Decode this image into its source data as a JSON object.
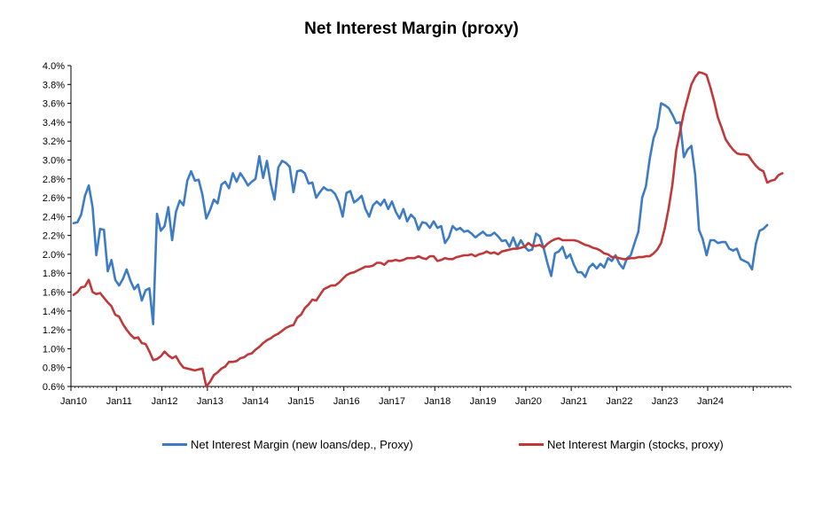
{
  "chart_data": {
    "type": "line",
    "title": "Net Interest Margin (proxy)",
    "xlabel": "",
    "ylabel": "",
    "ylim": [
      0.6,
      4.0
    ],
    "yticks": [
      "0.6%",
      "0.8%",
      "1.0%",
      "1.2%",
      "1.4%",
      "1.6%",
      "1.8%",
      "2.0%",
      "2.2%",
      "2.4%",
      "2.6%",
      "2.8%",
      "3.0%",
      "3.2%",
      "3.4%",
      "3.6%",
      "3.8%",
      "4.0%"
    ],
    "xticks": [
      "Jan10",
      "Jan11",
      "Jan12",
      "Jan13",
      "Jan14",
      "Jan15",
      "Jan16",
      "Jan17",
      "Jan18",
      "Jan19",
      "Jan20",
      "Jan21",
      "Jan22",
      "Jan23",
      "Jan24"
    ],
    "x_start": "2010-01",
    "grid": false,
    "legend_position": "bottom",
    "series": [
      {
        "name": "Net Interest Margin (new loans/dep., Proxy)",
        "color": "#3d7cc4",
        "values": [
          2.33,
          2.34,
          2.42,
          2.62,
          2.73,
          2.5,
          1.99,
          2.27,
          2.26,
          1.82,
          1.94,
          1.73,
          1.67,
          1.74,
          1.84,
          1.72,
          1.63,
          1.68,
          1.51,
          1.62,
          1.64,
          1.26,
          2.43,
          2.25,
          2.3,
          2.5,
          2.15,
          2.45,
          2.57,
          2.52,
          2.78,
          2.88,
          2.78,
          2.79,
          2.63,
          2.38,
          2.47,
          2.58,
          2.54,
          2.74,
          2.77,
          2.7,
          2.86,
          2.77,
          2.86,
          2.8,
          2.73,
          2.77,
          2.8,
          3.04,
          2.81,
          2.99,
          2.75,
          2.58,
          2.92,
          2.99,
          2.97,
          2.93,
          2.66,
          2.88,
          2.89,
          2.86,
          2.75,
          2.76,
          2.6,
          2.66,
          2.71,
          2.68,
          2.68,
          2.64,
          2.55,
          2.4,
          2.65,
          2.67,
          2.55,
          2.58,
          2.62,
          2.48,
          2.4,
          2.52,
          2.56,
          2.52,
          2.58,
          2.48,
          2.56,
          2.45,
          2.38,
          2.48,
          2.35,
          2.42,
          2.38,
          2.26,
          2.34,
          2.33,
          2.28,
          2.35,
          2.28,
          2.3,
          2.12,
          2.18,
          2.3,
          2.26,
          2.28,
          2.24,
          2.25,
          2.22,
          2.18,
          2.21,
          2.24,
          2.2,
          2.2,
          2.23,
          2.19,
          2.14,
          2.15,
          2.08,
          2.18,
          2.07,
          2.15,
          2.08,
          2.04,
          2.05,
          2.22,
          2.19,
          2.07,
          1.91,
          1.77,
          2.01,
          2.03,
          2.08,
          1.96,
          2.0,
          1.89,
          1.81,
          1.81,
          1.76,
          1.86,
          1.9,
          1.85,
          1.9,
          1.86,
          1.96,
          1.93,
          1.99,
          1.9,
          1.85,
          1.96,
          1.99,
          2.12,
          2.24,
          2.6,
          2.72,
          3.01,
          3.23,
          3.34,
          3.6,
          3.58,
          3.55,
          3.48,
          3.39,
          3.4,
          3.03,
          3.11,
          3.15,
          2.84,
          2.26,
          2.16,
          1.99,
          2.15,
          2.15,
          2.12,
          2.13,
          2.13,
          2.06,
          2.04,
          2.06,
          1.95,
          1.93,
          1.91,
          1.84,
          2.11,
          2.25,
          2.27,
          2.31
        ]
      },
      {
        "name": "Net Interest Margin (stocks, proxy)",
        "color": "#c0393a",
        "values": [
          1.57,
          1.6,
          1.65,
          1.66,
          1.73,
          1.6,
          1.58,
          1.59,
          1.54,
          1.49,
          1.45,
          1.36,
          1.34,
          1.26,
          1.2,
          1.15,
          1.11,
          1.12,
          1.06,
          1.05,
          0.97,
          0.88,
          0.89,
          0.92,
          0.97,
          0.93,
          0.9,
          0.92,
          0.85,
          0.8,
          0.79,
          0.78,
          0.77,
          0.78,
          0.79,
          0.6,
          0.65,
          0.72,
          0.75,
          0.79,
          0.81,
          0.86,
          0.86,
          0.87,
          0.9,
          0.91,
          0.94,
          0.95,
          0.99,
          1.02,
          1.06,
          1.09,
          1.11,
          1.14,
          1.16,
          1.19,
          1.22,
          1.24,
          1.25,
          1.33,
          1.36,
          1.43,
          1.47,
          1.52,
          1.51,
          1.57,
          1.63,
          1.65,
          1.67,
          1.67,
          1.7,
          1.74,
          1.78,
          1.8,
          1.81,
          1.83,
          1.85,
          1.87,
          1.87,
          1.88,
          1.91,
          1.91,
          1.89,
          1.93,
          1.93,
          1.94,
          1.93,
          1.94,
          1.96,
          1.96,
          1.96,
          1.98,
          1.96,
          1.95,
          1.98,
          1.98,
          1.93,
          1.94,
          1.96,
          1.95,
          1.95,
          1.97,
          1.98,
          1.99,
          1.99,
          2.0,
          1.98,
          2.0,
          2.01,
          2.03,
          2.01,
          2.02,
          2.0,
          2.03,
          2.04,
          2.05,
          2.06,
          2.06,
          2.07,
          2.08,
          2.12,
          2.09,
          2.09,
          2.1,
          2.07,
          2.11,
          2.14,
          2.16,
          2.17,
          2.15,
          2.15,
          2.15,
          2.15,
          2.14,
          2.12,
          2.1,
          2.09,
          2.07,
          2.06,
          2.04,
          2.01,
          2.0,
          1.97,
          1.97,
          1.96,
          1.95,
          1.95,
          1.96,
          1.96,
          1.97,
          1.97,
          1.98,
          1.98,
          2.01,
          2.05,
          2.12,
          2.28,
          2.49,
          2.74,
          3.1,
          3.3,
          3.5,
          3.65,
          3.8,
          3.88,
          3.93,
          3.92,
          3.9,
          3.77,
          3.62,
          3.45,
          3.34,
          3.22,
          3.16,
          3.11,
          3.07,
          3.06,
          3.06,
          3.05,
          2.99,
          2.94,
          2.9,
          2.88,
          2.76,
          2.78,
          2.79,
          2.84,
          2.86
        ]
      }
    ]
  }
}
